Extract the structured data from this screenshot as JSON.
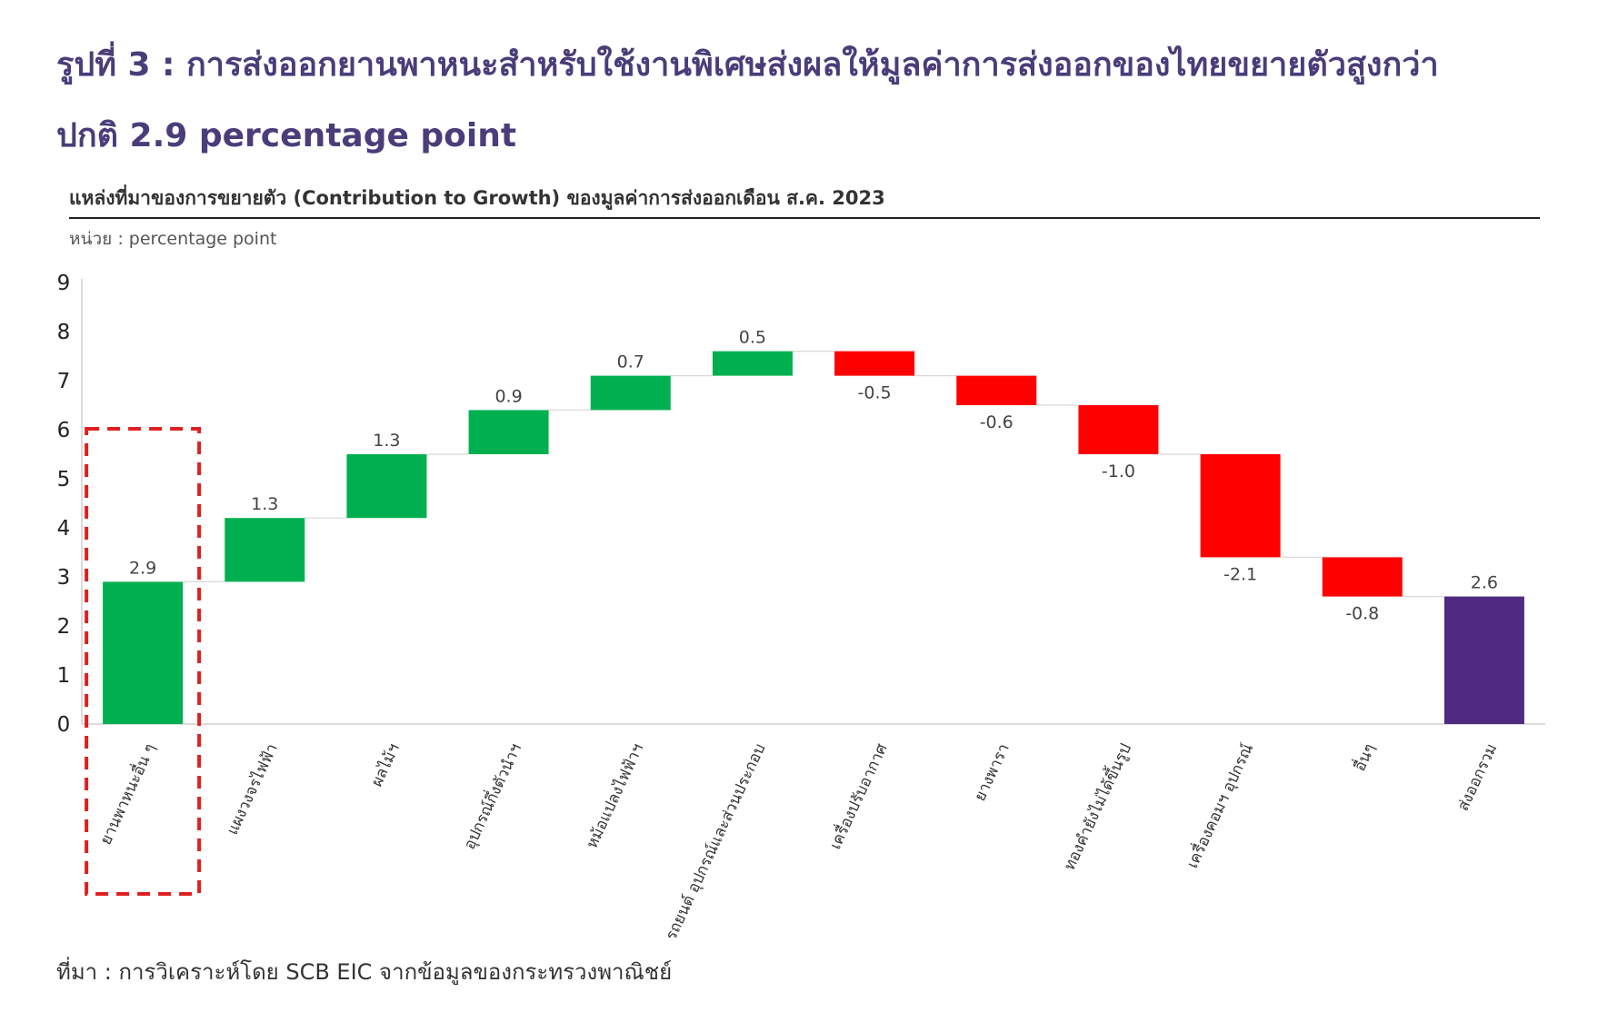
{
  "title_line1": "รูปที่ 3 : การส่งออกยานพาหนะสำหรับใช้งานพิเศษส่งผลให้มูลค่าการส่งออกของไทยขยายตัวสูงกว่า",
  "title_line2": "ปกติ 2.9 percentage point",
  "subtitle": "แหล่งที่มาของการขยายตัว (Contribution to Growth) ของมูลค่าการส่งออกเดือน ส.ค. 2023",
  "unit": "หน่วย : percentage point",
  "source": "ที่มา : การวิเคราะห์โดย SCB EIC จากข้อมูลของกระทรวงพาณิชย์",
  "colors": {
    "increase": "#00b050",
    "decrease": "#ff0000",
    "total": "#4f2a80",
    "highlight": "#e02020"
  },
  "chart_data": {
    "type": "bar",
    "subtype": "waterfall",
    "categories": [
      "ยานพาหนะอื่น ๆ",
      "แผงวงจรไฟฟ้า",
      "ผลไม้ฯ",
      "อุปกรณ์กึ่งตัวนำฯ",
      "หม้อแปลงไฟฟ้าฯ",
      "รถยนต์ อุปกรณ์และส่วนประกอบ",
      "เครื่องปรับอากาศ",
      "ยางพารา",
      "ทองคำยังไม่ได้ขึ้นรูป",
      "เครื่องคอมฯ อุปกรณ์",
      "อื่นๆ",
      "ส่งออกรวม"
    ],
    "values": [
      2.9,
      1.3,
      1.3,
      0.9,
      0.7,
      0.5,
      -0.5,
      -0.6,
      -1.0,
      -2.1,
      -0.8,
      2.6
    ],
    "value_labels": [
      "2.9",
      "1.3",
      "1.3",
      "0.9",
      "0.7",
      "0.5",
      "-0.5",
      "-0.6",
      "-1.0",
      "-2.1",
      "-0.8",
      "2.6"
    ],
    "total_index": 11,
    "highlight_index": 0,
    "ylim": [
      0,
      9
    ],
    "yticks": [
      "0",
      "1",
      "2",
      "3",
      "4",
      "5",
      "6",
      "7",
      "8",
      "9"
    ],
    "grid": false,
    "legend": "none"
  }
}
